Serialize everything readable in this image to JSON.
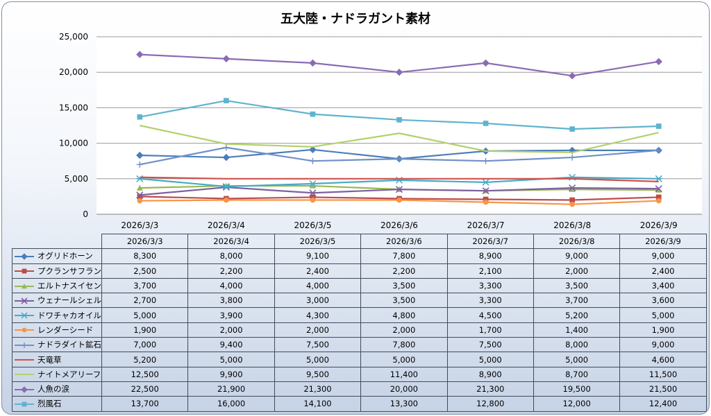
{
  "chart_data": {
    "type": "line",
    "title": "五大陸・ナドラガント素材",
    "categories": [
      "2026/3/3",
      "2026/3/4",
      "2026/3/5",
      "2026/3/6",
      "2026/3/7",
      "2026/3/8",
      "2026/3/9"
    ],
    "ylim": [
      0,
      25000
    ],
    "yticks": [
      "0",
      "5,000",
      "10,000",
      "15,000",
      "20,000",
      "25,000"
    ],
    "grid": true,
    "legend": "data-table",
    "series": [
      {
        "name": "オグリドホーン",
        "color": "#4a7ebb",
        "marker": "diamond",
        "values": [
          8300,
          8000,
          9100,
          7800,
          8900,
          9000,
          9000
        ],
        "labels": [
          "8,300",
          "8,000",
          "9,100",
          "7,800",
          "8,900",
          "9,000",
          "9,000"
        ]
      },
      {
        "name": "プクランサフラン",
        "color": "#be4b48",
        "marker": "square",
        "values": [
          2500,
          2200,
          2400,
          2200,
          2100,
          2000,
          2400
        ],
        "labels": [
          "2,500",
          "2,200",
          "2,400",
          "2,200",
          "2,100",
          "2,000",
          "2,400"
        ]
      },
      {
        "name": "エルトナスイセン",
        "color": "#98b954",
        "marker": "triangle",
        "values": [
          3700,
          4000,
          4000,
          3500,
          3300,
          3500,
          3400
        ],
        "labels": [
          "3,700",
          "4,000",
          "4,000",
          "3,500",
          "3,300",
          "3,500",
          "3,400"
        ]
      },
      {
        "name": "ウェナールシェル",
        "color": "#7d60a0",
        "marker": "x",
        "values": [
          2700,
          3800,
          3000,
          3500,
          3300,
          3700,
          3600
        ],
        "labels": [
          "2,700",
          "3,800",
          "3,000",
          "3,500",
          "3,300",
          "3,700",
          "3,600"
        ]
      },
      {
        "name": "ドワチャカオイル",
        "color": "#46aac4",
        "marker": "star",
        "values": [
          5000,
          3900,
          4300,
          4800,
          4500,
          5200,
          5000
        ],
        "labels": [
          "5,000",
          "3,900",
          "4,300",
          "4,800",
          "4,500",
          "5,200",
          "5,000"
        ]
      },
      {
        "name": "レンダーシード",
        "color": "#f79646",
        "marker": "circle",
        "values": [
          1900,
          2000,
          2000,
          2000,
          1700,
          1400,
          1900
        ],
        "labels": [
          "1,900",
          "2,000",
          "2,000",
          "2,000",
          "1,700",
          "1,400",
          "1,900"
        ]
      },
      {
        "name": "ナドラダイト鉱石",
        "color": "#7090c8",
        "marker": "plus",
        "values": [
          7000,
          9400,
          7500,
          7800,
          7500,
          8000,
          9000
        ],
        "labels": [
          "7,000",
          "9,400",
          "7,500",
          "7,800",
          "7,500",
          "8,000",
          "9,000"
        ]
      },
      {
        "name": "天竜草",
        "color": "#d0504c",
        "marker": "dash",
        "values": [
          5200,
          5000,
          5000,
          5000,
          5000,
          5000,
          4600
        ],
        "labels": [
          "5,200",
          "5,000",
          "5,000",
          "5,000",
          "5,000",
          "5,000",
          "4,600"
        ]
      },
      {
        "name": "ナイトメアリーフ",
        "color": "#b3d06c",
        "marker": "dash",
        "values": [
          12500,
          9900,
          9500,
          11400,
          8900,
          8700,
          11500
        ],
        "labels": [
          "12,500",
          "9,900",
          "9,500",
          "11,400",
          "8,900",
          "8,700",
          "11,500"
        ]
      },
      {
        "name": "人魚の涙",
        "color": "#8a6bb3",
        "marker": "diamond",
        "values": [
          22500,
          21900,
          21300,
          20000,
          21300,
          19500,
          21500
        ],
        "labels": [
          "22,500",
          "21,900",
          "21,300",
          "20,000",
          "21,300",
          "19,500",
          "21,500"
        ]
      },
      {
        "name": "烈風石",
        "color": "#5fb3cf",
        "marker": "square",
        "values": [
          13700,
          16000,
          14100,
          13300,
          12800,
          12000,
          12400
        ],
        "labels": [
          "13,700",
          "16,000",
          "14,100",
          "13,300",
          "12,800",
          "12,000",
          "12,400"
        ]
      }
    ]
  }
}
